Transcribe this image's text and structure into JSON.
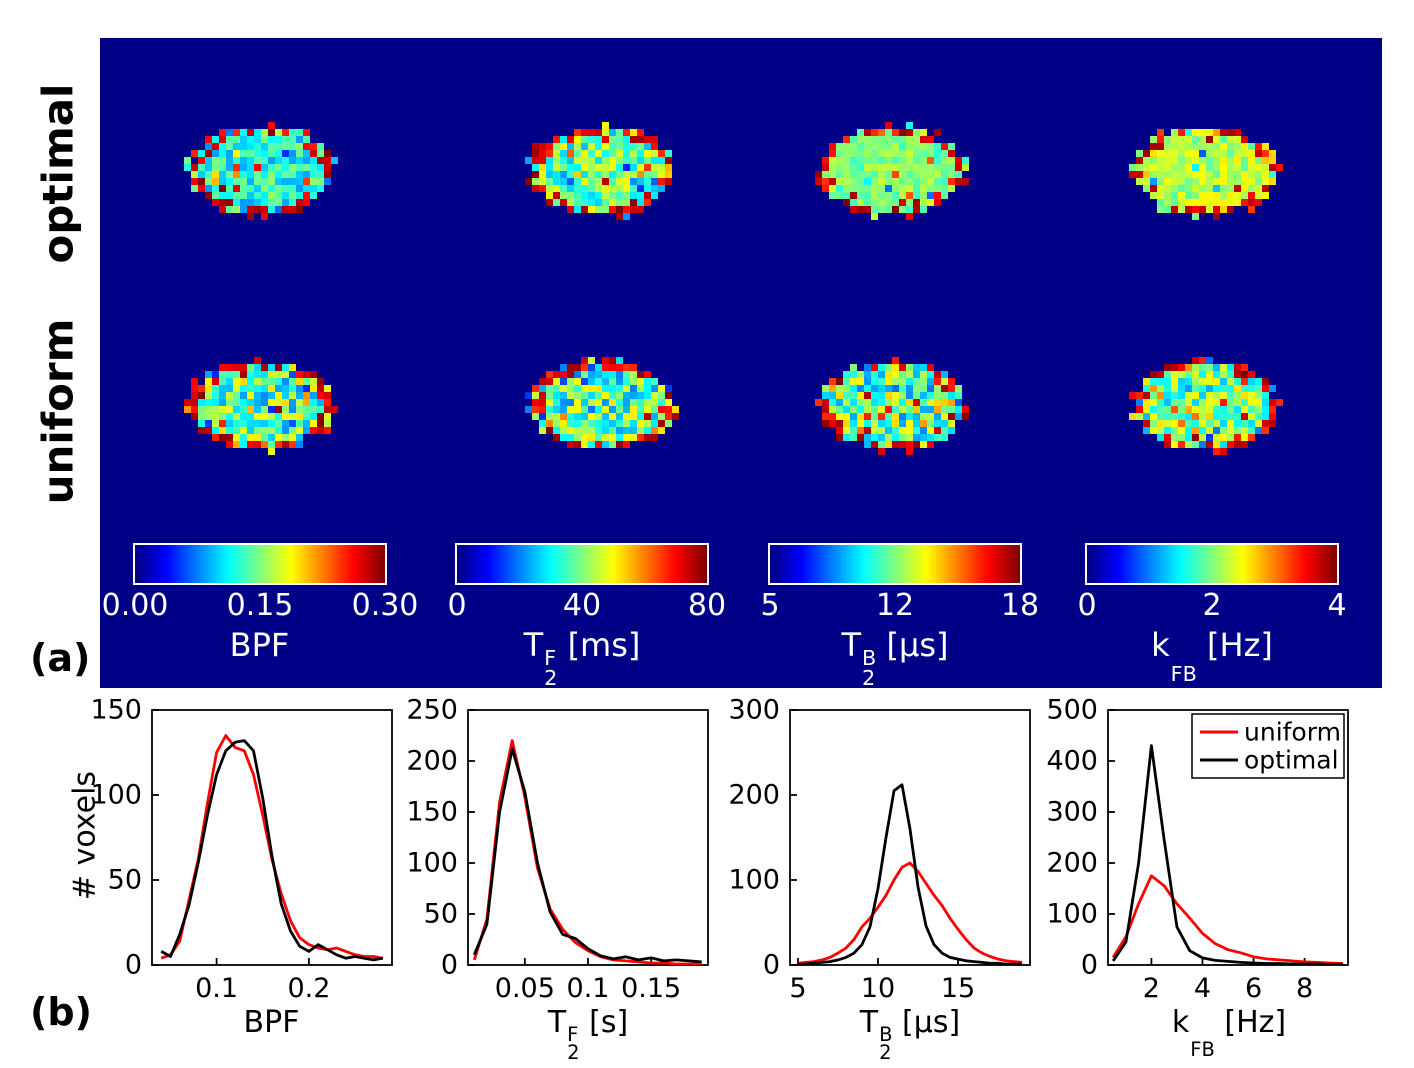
{
  "figure": {
    "panel_a_label": "(a)",
    "panel_b_label": "(b)",
    "panel_a_background": "#000087",
    "colormap": "jet"
  },
  "panel_a": {
    "row_labels": [
      "optimal",
      "uniform"
    ],
    "maps": [
      {
        "name": "BPF",
        "colorbar_ticks": [
          "0.00",
          "0.15",
          "0.30"
        ],
        "xlabel": {
          "pre": "BPF",
          "sup": "",
          "sub": "",
          "post": ""
        },
        "render": {
          "optimal": {
            "base": 0.4,
            "noise": 0.25,
            "outlier": 0.1,
            "seed": 101
          },
          "uniform": {
            "base": 0.46,
            "noise": 0.4,
            "outlier": 0.18,
            "seed": 102
          }
        }
      },
      {
        "name": "T2F",
        "colorbar_ticks": [
          "0",
          "40",
          "80"
        ],
        "xlabel": {
          "pre": "T",
          "sup": "F",
          "sub": "2",
          "post": " [ms]"
        },
        "render": {
          "optimal": {
            "base": 0.47,
            "noise": 0.32,
            "outlier": 0.14,
            "seed": 103
          },
          "uniform": {
            "base": 0.45,
            "noise": 0.4,
            "outlier": 0.18,
            "seed": 104
          }
        }
      },
      {
        "name": "T2B",
        "colorbar_ticks": [
          "5",
          "12",
          "18"
        ],
        "xlabel": {
          "pre": "T",
          "sup": "B",
          "sub": "2",
          "post": " [μs]"
        },
        "render": {
          "optimal": {
            "base": 0.5,
            "noise": 0.14,
            "outlier": 0.05,
            "seed": 105
          },
          "uniform": {
            "base": 0.46,
            "noise": 0.42,
            "outlier": 0.2,
            "seed": 106
          }
        }
      },
      {
        "name": "kFB",
        "colorbar_ticks": [
          "0",
          "2",
          "4"
        ],
        "xlabel": {
          "pre": "k",
          "sup": "",
          "sub": "FB",
          "post": " [Hz]"
        },
        "render": {
          "optimal": {
            "base": 0.55,
            "noise": 0.18,
            "outlier": 0.06,
            "seed": 107
          },
          "uniform": {
            "base": 0.48,
            "noise": 0.34,
            "outlier": 0.15,
            "seed": 108
          }
        }
      }
    ]
  },
  "panel_b": {
    "ylabel": "# voxels",
    "legend": [
      {
        "label": "uniform",
        "color": "#FF0000"
      },
      {
        "label": "optimal",
        "color": "#000000"
      }
    ]
  },
  "chart_data": [
    {
      "type": "line",
      "title": "",
      "xlabel": "BPF",
      "xlabel_parts": {
        "pre": "BPF",
        "sup": "",
        "sub": "",
        "post": ""
      },
      "ylabel": "# voxels",
      "xlim": [
        0.03,
        0.29
      ],
      "ylim": [
        0,
        150
      ],
      "xticks": [
        0.1,
        0.2
      ],
      "xtick_labels": [
        "0.1",
        "0.2"
      ],
      "yticks": [
        0,
        50,
        100,
        150
      ],
      "x": [
        0.04,
        0.05,
        0.06,
        0.07,
        0.08,
        0.09,
        0.1,
        0.11,
        0.12,
        0.13,
        0.14,
        0.15,
        0.16,
        0.17,
        0.18,
        0.19,
        0.2,
        0.21,
        0.22,
        0.23,
        0.24,
        0.25,
        0.26,
        0.27,
        0.28
      ],
      "series": [
        {
          "name": "uniform",
          "color": "#FF0000",
          "values": [
            4,
            6,
            14,
            38,
            62,
            95,
            125,
            135,
            128,
            126,
            112,
            88,
            62,
            42,
            26,
            16,
            12,
            10,
            9,
            10,
            8,
            6,
            5,
            5,
            4
          ]
        },
        {
          "name": "optimal",
          "color": "#000000",
          "values": [
            8,
            5,
            18,
            35,
            60,
            88,
            112,
            126,
            131,
            132,
            126,
            98,
            64,
            36,
            20,
            11,
            8,
            12,
            9,
            6,
            4,
            5,
            4,
            3,
            4
          ]
        }
      ]
    },
    {
      "type": "line",
      "title": "",
      "xlabel": "T_2^F [s]",
      "xlabel_parts": {
        "pre": "T",
        "sup": "F",
        "sub": "2",
        "post": " [s]"
      },
      "ylabel": "",
      "xlim": [
        0.005,
        0.195
      ],
      "ylim": [
        0,
        250
      ],
      "xticks": [
        0.05,
        0.1,
        0.15
      ],
      "xtick_labels": [
        "0.05",
        "0.1",
        "0.15"
      ],
      "yticks": [
        0,
        50,
        100,
        150,
        200,
        250
      ],
      "x": [
        0.01,
        0.02,
        0.03,
        0.04,
        0.05,
        0.06,
        0.07,
        0.08,
        0.09,
        0.1,
        0.11,
        0.12,
        0.13,
        0.14,
        0.15,
        0.16,
        0.17,
        0.18,
        0.19
      ],
      "series": [
        {
          "name": "uniform",
          "color": "#FF0000",
          "values": [
            5,
            45,
            160,
            220,
            165,
            95,
            55,
            35,
            22,
            14,
            8,
            5,
            4,
            3,
            2,
            2,
            1,
            1,
            1
          ]
        },
        {
          "name": "optimal",
          "color": "#000000",
          "values": [
            10,
            40,
            150,
            212,
            170,
            100,
            52,
            30,
            26,
            16,
            9,
            6,
            8,
            5,
            7,
            4,
            5,
            4,
            3
          ]
        }
      ]
    },
    {
      "type": "line",
      "title": "",
      "xlabel": "T_2^B [μs]",
      "xlabel_parts": {
        "pre": "T",
        "sup": "B",
        "sub": "2",
        "post": " [μs]"
      },
      "ylabel": "",
      "xlim": [
        4.5,
        19.5
      ],
      "ylim": [
        0,
        300
      ],
      "xticks": [
        5,
        10,
        15
      ],
      "xtick_labels": [
        "5",
        "10",
        "15"
      ],
      "yticks": [
        0,
        100,
        200,
        300
      ],
      "x": [
        5,
        5.5,
        6,
        6.5,
        7,
        7.5,
        8,
        8.5,
        9,
        9.5,
        10,
        10.5,
        11,
        11.5,
        12,
        12.5,
        13,
        13.5,
        14,
        14.5,
        15,
        15.5,
        16,
        16.5,
        17,
        17.5,
        18,
        18.5,
        19
      ],
      "series": [
        {
          "name": "uniform",
          "color": "#FF0000",
          "values": [
            2,
            3,
            4,
            6,
            9,
            14,
            20,
            30,
            45,
            55,
            68,
            82,
            100,
            115,
            120,
            110,
            96,
            82,
            70,
            55,
            42,
            30,
            20,
            14,
            10,
            7,
            5,
            4,
            3
          ]
        },
        {
          "name": "optimal",
          "color": "#000000",
          "values": [
            1,
            1,
            2,
            3,
            4,
            6,
            9,
            14,
            24,
            45,
            90,
            150,
            205,
            212,
            160,
            92,
            46,
            24,
            14,
            9,
            7,
            5,
            4,
            3,
            2,
            2,
            1,
            1,
            1
          ]
        }
      ]
    },
    {
      "type": "line",
      "title": "",
      "xlabel": "k_FB [Hz]",
      "xlabel_parts": {
        "pre": "k",
        "sup": "",
        "sub": "FB",
        "post": " [Hz]"
      },
      "ylabel": "",
      "xlim": [
        0.3,
        9.7
      ],
      "ylim": [
        0,
        500
      ],
      "xticks": [
        2,
        4,
        6,
        8
      ],
      "xtick_labels": [
        "2",
        "4",
        "6",
        "8"
      ],
      "yticks": [
        0,
        100,
        200,
        300,
        400,
        500
      ],
      "x": [
        0.5,
        1,
        1.5,
        2,
        2.5,
        3,
        3.5,
        4,
        4.5,
        5,
        5.5,
        6,
        6.5,
        7,
        7.5,
        8,
        8.5,
        9,
        9.5
      ],
      "series": [
        {
          "name": "uniform",
          "color": "#FF0000",
          "values": [
            15,
            55,
            120,
            175,
            155,
            120,
            92,
            62,
            42,
            30,
            24,
            16,
            12,
            10,
            8,
            6,
            5,
            4,
            3
          ]
        },
        {
          "name": "optimal",
          "color": "#000000",
          "values": [
            8,
            45,
            200,
            430,
            245,
            75,
            28,
            14,
            9,
            7,
            5,
            4,
            3,
            3,
            2,
            2,
            2,
            1,
            1
          ]
        }
      ],
      "legend_position": "top-right"
    }
  ]
}
